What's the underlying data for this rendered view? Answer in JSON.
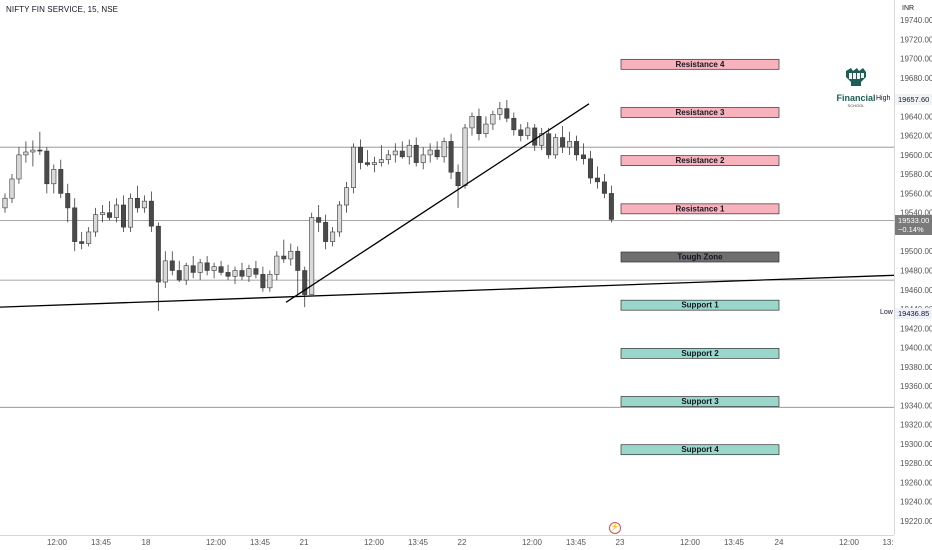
{
  "symbol": {
    "title": "NIFTY FIN SERVICE, 15, NSE"
  },
  "currency": "INR",
  "price_axis": {
    "ticks": [
      "19740.00",
      "19720.00",
      "19700.00",
      "19680.00",
      "19660.00",
      "19640.00",
      "19620.00",
      "19600.00",
      "19580.00",
      "19560.00",
      "19540.00",
      "19520.00",
      "19500.00",
      "19480.00",
      "19460.00",
      "19440.00",
      "19420.00",
      "19400.00",
      "19380.00",
      "19360.00",
      "19340.00",
      "19320.00",
      "19300.00",
      "19280.00",
      "19260.00",
      "19240.00",
      "19220.00"
    ]
  },
  "time_axis": {
    "ticks": [
      "12:00",
      "13:45",
      "18",
      "12:00",
      "13:45",
      "21",
      "12:00",
      "13:45",
      "22",
      "12:00",
      "13:45",
      "23",
      "12:00",
      "13:45",
      "24",
      "12:00",
      "13:"
    ]
  },
  "badges": {
    "current_price": "19533.00",
    "change": "−0.14%",
    "high_label": "High",
    "high_value": "19657.60",
    "low_label": "Low",
    "low_value": "19436.85"
  },
  "logo": {
    "brand": "Financial",
    "sub": "SCHOOL"
  },
  "zones": [
    {
      "label": "Resistance 4",
      "price": 19694,
      "kind": "resistance"
    },
    {
      "label": "Resistance 3",
      "price": 19644,
      "kind": "resistance"
    },
    {
      "label": "Resistance 2",
      "price": 19594,
      "kind": "resistance"
    },
    {
      "label": "Resistance 1",
      "price": 19544,
      "kind": "resistance"
    },
    {
      "label": "Tough Zone",
      "price": 19494,
      "kind": "tough"
    },
    {
      "label": "Support 1",
      "price": 19444,
      "kind": "support"
    },
    {
      "label": "Support 2",
      "price": 19394,
      "kind": "support"
    },
    {
      "label": "Support 3",
      "price": 19344,
      "kind": "support"
    },
    {
      "label": "Support 4",
      "price": 19294,
      "kind": "support"
    }
  ],
  "colors": {
    "resistance_fill": "#f7b2bb",
    "support_fill": "#98d7c9",
    "tough_fill": "#6f6f6f",
    "bull_candle": "#d9d9d9",
    "bear_candle": "#4a4a4a",
    "hline": "#8a8a8a",
    "trendline": "#000000"
  },
  "horizontal_lines": [
    19608,
    19532,
    19470,
    19338
  ],
  "trendlines": [
    {
      "from": [
        "17 10:15",
        19447
      ],
      "to": [
        "22 14:30",
        19653
      ]
    },
    {
      "from": [
        "17 10:00",
        19442
      ],
      "to": [
        "23 15:30",
        19475
      ]
    }
  ],
  "chart_data": {
    "type": "candlestick",
    "symbol": "NIFTY FIN SERVICE",
    "interval": "15",
    "ylim": [
      19216,
      19748
    ],
    "candles": [
      {
        "o": 19545,
        "h": 19560,
        "l": 19540,
        "c": 19555
      },
      {
        "o": 19555,
        "h": 19580,
        "l": 19550,
        "c": 19575
      },
      {
        "o": 19575,
        "h": 19608,
        "l": 19570,
        "c": 19600
      },
      {
        "o": 19600,
        "h": 19614,
        "l": 19592,
        "c": 19603
      },
      {
        "o": 19603,
        "h": 19615,
        "l": 19588,
        "c": 19605
      },
      {
        "o": 19605,
        "h": 19624,
        "l": 19600,
        "c": 19604
      },
      {
        "o": 19604,
        "h": 19608,
        "l": 19560,
        "c": 19570
      },
      {
        "o": 19570,
        "h": 19590,
        "l": 19560,
        "c": 19585
      },
      {
        "o": 19585,
        "h": 19595,
        "l": 19555,
        "c": 19560
      },
      {
        "o": 19560,
        "h": 19570,
        "l": 19530,
        "c": 19545
      },
      {
        "o": 19545,
        "h": 19555,
        "l": 19500,
        "c": 19510
      },
      {
        "o": 19510,
        "h": 19520,
        "l": 19502,
        "c": 19508
      },
      {
        "o": 19508,
        "h": 19525,
        "l": 19505,
        "c": 19520
      },
      {
        "o": 19520,
        "h": 19545,
        "l": 19515,
        "c": 19538
      },
      {
        "o": 19538,
        "h": 19548,
        "l": 19530,
        "c": 19540
      },
      {
        "o": 19540,
        "h": 19552,
        "l": 19532,
        "c": 19535
      },
      {
        "o": 19535,
        "h": 19555,
        "l": 19530,
        "c": 19548
      },
      {
        "o": 19548,
        "h": 19558,
        "l": 19520,
        "c": 19525
      },
      {
        "o": 19525,
        "h": 19560,
        "l": 19520,
        "c": 19555
      },
      {
        "o": 19555,
        "h": 19568,
        "l": 19540,
        "c": 19545
      },
      {
        "o": 19545,
        "h": 19558,
        "l": 19540,
        "c": 19552
      },
      {
        "o": 19552,
        "h": 19562,
        "l": 19520,
        "c": 19526
      },
      {
        "o": 19526,
        "h": 19530,
        "l": 19438,
        "c": 19468
      },
      {
        "o": 19468,
        "h": 19500,
        "l": 19462,
        "c": 19490
      },
      {
        "o": 19490,
        "h": 19500,
        "l": 19475,
        "c": 19480
      },
      {
        "o": 19480,
        "h": 19490,
        "l": 19468,
        "c": 19470
      },
      {
        "o": 19470,
        "h": 19488,
        "l": 19465,
        "c": 19485
      },
      {
        "o": 19485,
        "h": 19495,
        "l": 19472,
        "c": 19478
      },
      {
        "o": 19478,
        "h": 19492,
        "l": 19470,
        "c": 19488
      },
      {
        "o": 19488,
        "h": 19495,
        "l": 19475,
        "c": 19480
      },
      {
        "o": 19480,
        "h": 19488,
        "l": 19472,
        "c": 19484
      },
      {
        "o": 19484,
        "h": 19490,
        "l": 19475,
        "c": 19478
      },
      {
        "o": 19478,
        "h": 19486,
        "l": 19470,
        "c": 19474
      },
      {
        "o": 19474,
        "h": 19484,
        "l": 19466,
        "c": 19480
      },
      {
        "o": 19480,
        "h": 19488,
        "l": 19470,
        "c": 19474
      },
      {
        "o": 19474,
        "h": 19486,
        "l": 19468,
        "c": 19482
      },
      {
        "o": 19482,
        "h": 19490,
        "l": 19472,
        "c": 19476
      },
      {
        "o": 19476,
        "h": 19484,
        "l": 19458,
        "c": 19462
      },
      {
        "o": 19462,
        "h": 19480,
        "l": 19458,
        "c": 19476
      },
      {
        "o": 19476,
        "h": 19500,
        "l": 19470,
        "c": 19495
      },
      {
        "o": 19495,
        "h": 19512,
        "l": 19488,
        "c": 19492
      },
      {
        "o": 19492,
        "h": 19508,
        "l": 19485,
        "c": 19500
      },
      {
        "o": 19500,
        "h": 19505,
        "l": 19455,
        "c": 19480
      },
      {
        "o": 19480,
        "h": 19484,
        "l": 19442,
        "c": 19455
      },
      {
        "o": 19455,
        "h": 19540,
        "l": 19455,
        "c": 19535
      },
      {
        "o": 19535,
        "h": 19548,
        "l": 19520,
        "c": 19530
      },
      {
        "o": 19530,
        "h": 19538,
        "l": 19502,
        "c": 19510
      },
      {
        "o": 19510,
        "h": 19525,
        "l": 19505,
        "c": 19520
      },
      {
        "o": 19520,
        "h": 19552,
        "l": 19515,
        "c": 19548
      },
      {
        "o": 19548,
        "h": 19572,
        "l": 19540,
        "c": 19566
      },
      {
        "o": 19566,
        "h": 19612,
        "l": 19560,
        "c": 19608
      },
      {
        "o": 19608,
        "h": 19616,
        "l": 19585,
        "c": 19592
      },
      {
        "o": 19592,
        "h": 19605,
        "l": 19588,
        "c": 19590
      },
      {
        "o": 19590,
        "h": 19598,
        "l": 19582,
        "c": 19592
      },
      {
        "o": 19592,
        "h": 19610,
        "l": 19588,
        "c": 19595
      },
      {
        "o": 19595,
        "h": 19605,
        "l": 19590,
        "c": 19600
      },
      {
        "o": 19600,
        "h": 19612,
        "l": 19592,
        "c": 19604
      },
      {
        "o": 19604,
        "h": 19614,
        "l": 19596,
        "c": 19598
      },
      {
        "o": 19598,
        "h": 19616,
        "l": 19590,
        "c": 19610
      },
      {
        "o": 19610,
        "h": 19618,
        "l": 19588,
        "c": 19592
      },
      {
        "o": 19592,
        "h": 19608,
        "l": 19585,
        "c": 19600
      },
      {
        "o": 19600,
        "h": 19612,
        "l": 19592,
        "c": 19605
      },
      {
        "o": 19605,
        "h": 19614,
        "l": 19595,
        "c": 19598
      },
      {
        "o": 19598,
        "h": 19618,
        "l": 19592,
        "c": 19614
      },
      {
        "o": 19614,
        "h": 19622,
        "l": 19575,
        "c": 19582
      },
      {
        "o": 19582,
        "h": 19590,
        "l": 19545,
        "c": 19568
      },
      {
        "o": 19568,
        "h": 19632,
        "l": 19565,
        "c": 19628
      },
      {
        "o": 19628,
        "h": 19644,
        "l": 19620,
        "c": 19640
      },
      {
        "o": 19640,
        "h": 19648,
        "l": 19615,
        "c": 19622
      },
      {
        "o": 19622,
        "h": 19640,
        "l": 19618,
        "c": 19632
      },
      {
        "o": 19632,
        "h": 19646,
        "l": 19626,
        "c": 19642
      },
      {
        "o": 19642,
        "h": 19655,
        "l": 19636,
        "c": 19648
      },
      {
        "o": 19648,
        "h": 19657,
        "l": 19634,
        "c": 19638
      },
      {
        "o": 19638,
        "h": 19644,
        "l": 19620,
        "c": 19626
      },
      {
        "o": 19626,
        "h": 19632,
        "l": 19614,
        "c": 19620
      },
      {
        "o": 19620,
        "h": 19634,
        "l": 19616,
        "c": 19628
      },
      {
        "o": 19628,
        "h": 19632,
        "l": 19604,
        "c": 19610
      },
      {
        "o": 19610,
        "h": 19628,
        "l": 19605,
        "c": 19622
      },
      {
        "o": 19622,
        "h": 19628,
        "l": 19596,
        "c": 19600
      },
      {
        "o": 19600,
        "h": 19622,
        "l": 19596,
        "c": 19618
      },
      {
        "o": 19618,
        "h": 19630,
        "l": 19602,
        "c": 19608
      },
      {
        "o": 19608,
        "h": 19624,
        "l": 19600,
        "c": 19614
      },
      {
        "o": 19614,
        "h": 19620,
        "l": 19594,
        "c": 19600
      },
      {
        "o": 19600,
        "h": 19612,
        "l": 19590,
        "c": 19596
      },
      {
        "o": 19596,
        "h": 19604,
        "l": 19570,
        "c": 19576
      },
      {
        "o": 19576,
        "h": 19588,
        "l": 19565,
        "c": 19572
      },
      {
        "o": 19572,
        "h": 19580,
        "l": 19555,
        "c": 19560
      },
      {
        "o": 19560,
        "h": 19568,
        "l": 19530,
        "c": 19533
      }
    ]
  }
}
